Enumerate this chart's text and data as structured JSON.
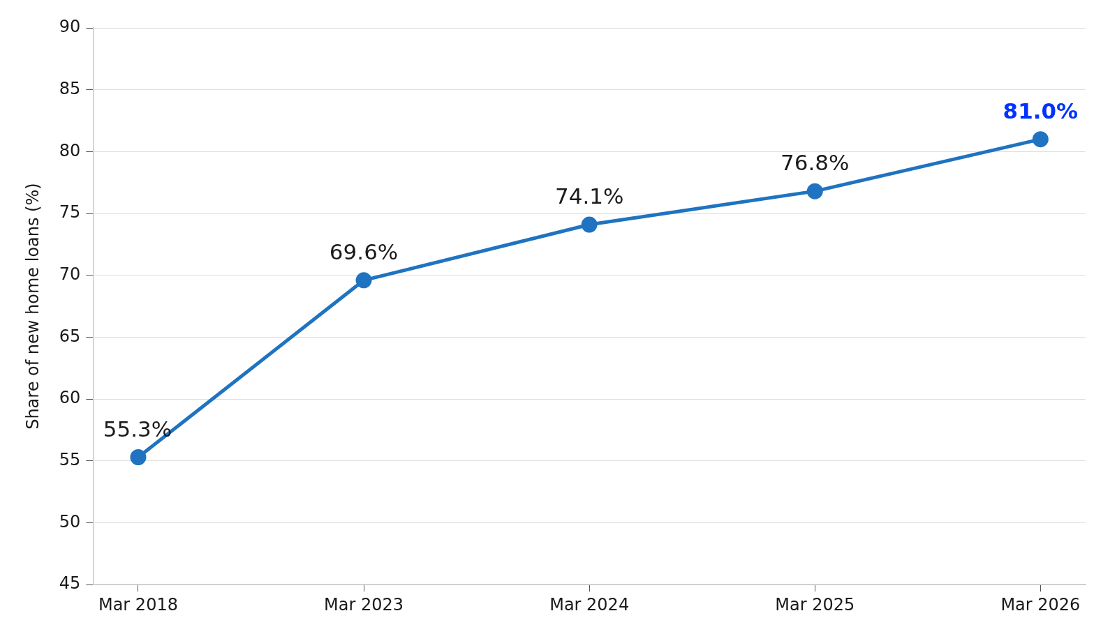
{
  "chart_data": {
    "type": "line",
    "ylabel": "Share of new home loans (%)",
    "categories": [
      "Mar 2018",
      "Mar 2023",
      "Mar 2024",
      "Mar 2025",
      "Mar 2026"
    ],
    "series": [
      {
        "color": "#1f73c0",
        "values": [
          55.3,
          69.6,
          74.1,
          76.8,
          81.0
        ],
        "value_labels": [
          "55.3%",
          "69.6%",
          "74.1%",
          "76.8%",
          "81.0%"
        ]
      }
    ],
    "ylim": [
      45,
      90
    ],
    "yticks": [
      45,
      50,
      55,
      60,
      65,
      70,
      75,
      80,
      85,
      90
    ],
    "grid": "y",
    "legend": false,
    "marker": "circle",
    "line_style": "solid"
  }
}
